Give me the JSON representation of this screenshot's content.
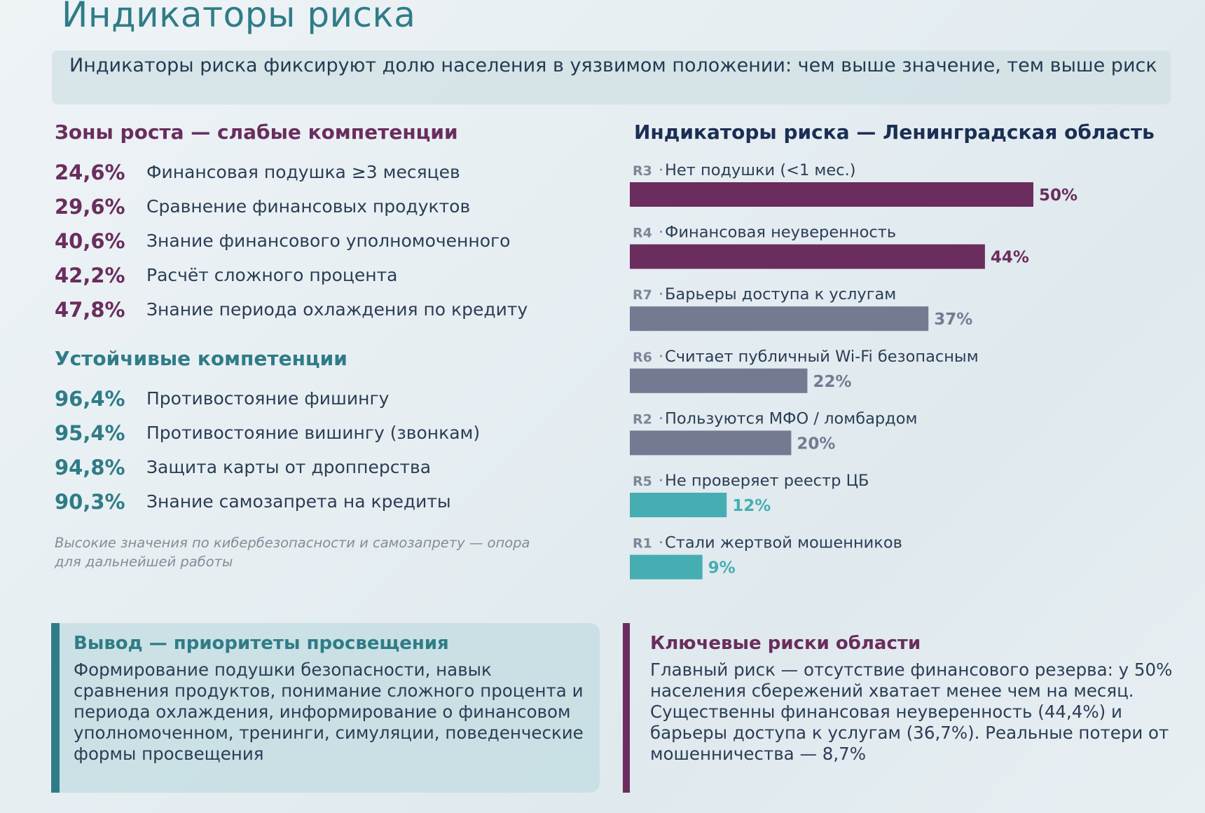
{
  "page_title": "Индикаторы риска",
  "subtitle": "Индикаторы риска фиксируют долю населения в уязвимом положении: чем выше значение, тем выше риск",
  "weak": {
    "title": "Зоны роста — слабые компетенции",
    "items": [
      {
        "value": "24,6%",
        "label": "Финансовая подушка ≥3 месяцев"
      },
      {
        "value": "29,6%",
        "label": "Сравнение финансовых продуктов"
      },
      {
        "value": "40,6%",
        "label": "Знание финансового уполномоченного"
      },
      {
        "value": "42,2%",
        "label": "Расчёт сложного процента"
      },
      {
        "value": "47,8%",
        "label": "Знание периода охлаждения по кредиту"
      }
    ]
  },
  "strong": {
    "title": "Устойчивые компетенции",
    "items": [
      {
        "value": "96,4%",
        "label": "Противостояние фишингу"
      },
      {
        "value": "95,4%",
        "label": "Противостояние вишингу (звонкам)"
      },
      {
        "value": "94,8%",
        "label": "Защита карты от дропперства"
      },
      {
        "value": "90,3%",
        "label": "Знание самозапрета на кредиты"
      }
    ]
  },
  "note": "Высокие значения по кибербезопасности и самозапрету — опора для дальнейшей работы",
  "colors": {
    "high": "#6a2d5d",
    "medium": "#737b92",
    "low": "#46aeb3"
  },
  "chart_data": {
    "type": "bar",
    "orientation": "horizontal",
    "title": "Индикаторы риска — Ленинградская область",
    "categories": [
      {
        "code": "R3",
        "label": "Нет подушки (<1 мес.)",
        "value": 50,
        "value_label": "50%",
        "level": "high"
      },
      {
        "code": "R4",
        "label": "Финансовая неуверенность",
        "value": 44,
        "value_label": "44%",
        "level": "high"
      },
      {
        "code": "R7",
        "label": "Барьеры доступа к услугам",
        "value": 37,
        "value_label": "37%",
        "level": "medium"
      },
      {
        "code": "R6",
        "label": "Считает публичный Wi-Fi безопасным",
        "value": 22,
        "value_label": "22%",
        "level": "medium"
      },
      {
        "code": "R2",
        "label": "Пользуются МФО / ломбардом",
        "value": 20,
        "value_label": "20%",
        "level": "medium"
      },
      {
        "code": "R5",
        "label": "Не проверяет реестр ЦБ",
        "value": 12,
        "value_label": "12%",
        "level": "low"
      },
      {
        "code": "R1",
        "label": "Стали жертвой мошенников",
        "value": 9,
        "value_label": "9%",
        "level": "low"
      }
    ],
    "xlim": [
      0,
      50
    ],
    "grid": false
  },
  "conclusion": {
    "title": "Вывод — приоритеты просвещения",
    "text": "Формирование подушки безопасности, навык сравнения продуктов, понимание сложного процента и периода охлаждения, информирование о финансовом уполномоченном, тренинги, симуляции, поведенческие формы просвещения"
  },
  "key_risks": {
    "title": "Ключевые риски области",
    "text": "Главный риск — отсутствие финансового резерва: у 50% населения сбережений хватает менее чем на месяц. Существенны финансовая неуверенность (44,4%) и барьеры доступа к услугам (36,7%). Реальные потери от мошенничества — 8,7%"
  }
}
